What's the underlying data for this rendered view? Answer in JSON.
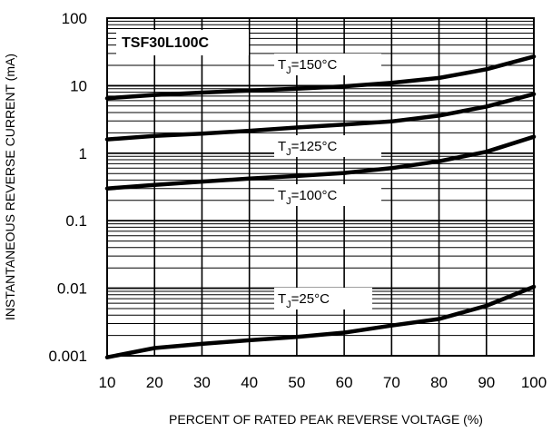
{
  "chart_data": {
    "type": "line",
    "title": "",
    "xlabel": "PERCENT OF RATED PEAK REVERSE VOLTAGE (%)",
    "ylabel": "INSTANTANEOUS REVERSE CURRENT (mA)",
    "xlim": [
      10,
      100
    ],
    "ylim": [
      0.001,
      100
    ],
    "yscale": "log",
    "grid": true,
    "x_ticks": [
      "10",
      "20",
      "30",
      "40",
      "50",
      "60",
      "70",
      "80",
      "90",
      "100"
    ],
    "y_ticks": [
      "100",
      "10",
      "1",
      "0.1",
      "0.01",
      "0.001"
    ],
    "model_label": "TSF30L100C",
    "x": [
      10,
      20,
      30,
      40,
      50,
      60,
      70,
      80,
      90,
      100
    ],
    "series": [
      {
        "name": "TJ=150°C",
        "label_main": "T",
        "label_sub": "J",
        "label_rest": "=150°C",
        "values": [
          6.5,
          7.3,
          7.9,
          8.5,
          9.0,
          9.8,
          11.0,
          13.0,
          17.5,
          27.0
        ]
      },
      {
        "name": "TJ=125°C",
        "label_main": "T",
        "label_sub": "J",
        "label_rest": "=125°C",
        "values": [
          1.6,
          1.8,
          1.95,
          2.15,
          2.4,
          2.65,
          2.95,
          3.6,
          4.9,
          7.5
        ]
      },
      {
        "name": "TJ=100°C",
        "label_main": "T",
        "label_sub": "J",
        "label_rest": "=100°C",
        "values": [
          0.3,
          0.34,
          0.38,
          0.42,
          0.46,
          0.51,
          0.6,
          0.76,
          1.05,
          1.75
        ]
      },
      {
        "name": "TJ=25°C",
        "label_main": "T",
        "label_sub": "J",
        "label_rest": "=25°C",
        "values": [
          0.00095,
          0.0013,
          0.0015,
          0.0017,
          0.0019,
          0.0022,
          0.0028,
          0.0035,
          0.0055,
          0.0105
        ]
      }
    ]
  }
}
